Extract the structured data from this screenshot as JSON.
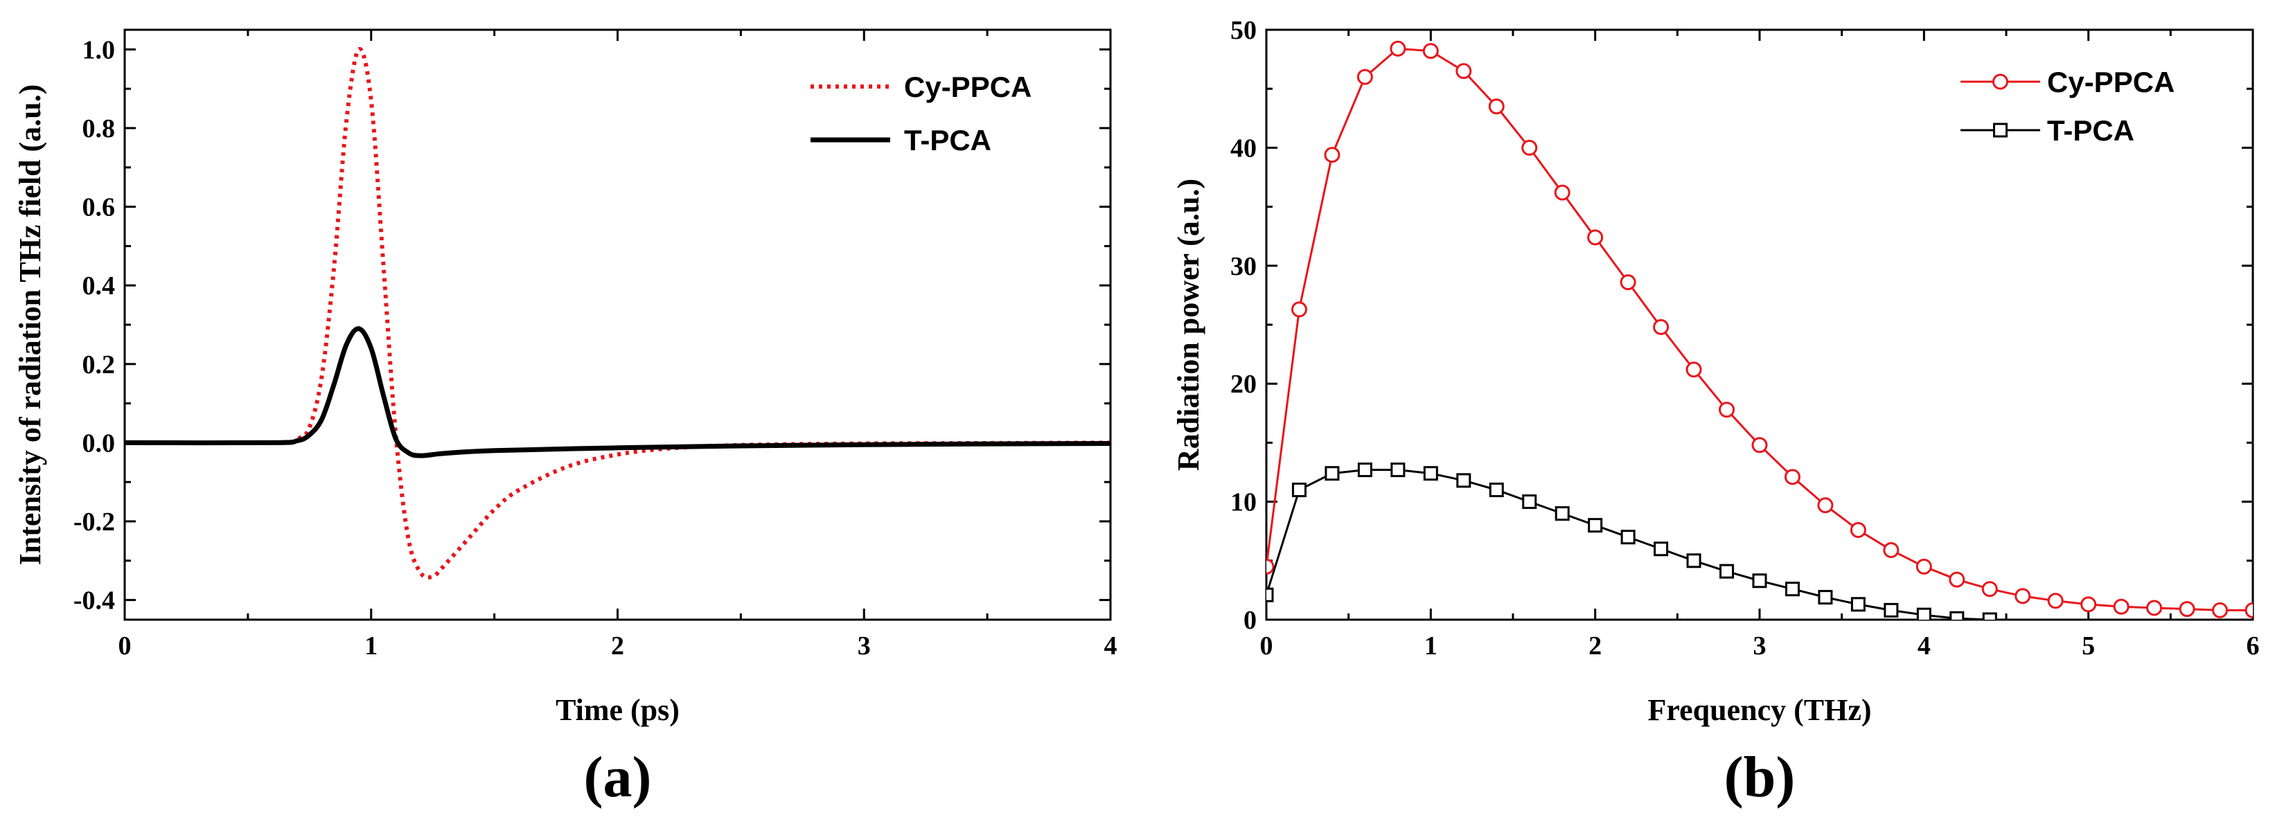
{
  "chart_data": [
    {
      "id": "a",
      "type": "line",
      "panel_label": "(a)",
      "title": "",
      "xlabel": "Time (ps)",
      "ylabel": "Intensity of radiation THz field (a.u.)",
      "xlim": [
        0,
        4
      ],
      "ylim": [
        -0.45,
        1.05
      ],
      "xticks": [
        0,
        1,
        2,
        3,
        4
      ],
      "xtick_labels": [
        "0",
        "1",
        "2",
        "3",
        "4"
      ],
      "yticks": [
        -0.4,
        -0.2,
        0.0,
        0.2,
        0.4,
        0.6,
        0.8,
        1.0
      ],
      "ytick_labels": [
        "-0.4",
        "-0.2",
        "0.0",
        "0.2",
        "0.4",
        "0.6",
        "0.8",
        "1.0"
      ],
      "legend_position": "top-right",
      "series": [
        {
          "name": "Cy-PPCA",
          "style": "dotted",
          "color": "#e8161b",
          "x": [
            0,
            0.6,
            0.7,
            0.75,
            0.8,
            0.85,
            0.9,
            0.95,
            1.0,
            1.05,
            1.1,
            1.15,
            1.2,
            1.25,
            1.3,
            1.4,
            1.5,
            1.6,
            1.8,
            2.0,
            2.2,
            2.5,
            3.0,
            3.5,
            4.0
          ],
          "y": [
            0,
            0.0,
            0.01,
            0.04,
            0.17,
            0.45,
            0.82,
            1.0,
            0.87,
            0.45,
            0.02,
            -0.24,
            -0.33,
            -0.34,
            -0.31,
            -0.24,
            -0.17,
            -0.12,
            -0.06,
            -0.03,
            -0.015,
            -0.006,
            -0.002,
            -0.001,
            0.0
          ]
        },
        {
          "name": "T-PCA",
          "style": "solid",
          "color": "#000000",
          "x": [
            0,
            0.6,
            0.7,
            0.75,
            0.8,
            0.85,
            0.9,
            0.95,
            1.0,
            1.05,
            1.1,
            1.15,
            1.2,
            1.3,
            1.5,
            2.0,
            2.5,
            3.0,
            3.5,
            4.0
          ],
          "y": [
            0,
            0.0,
            0.005,
            0.02,
            0.06,
            0.15,
            0.25,
            0.29,
            0.24,
            0.12,
            0.01,
            -0.025,
            -0.033,
            -0.027,
            -0.02,
            -0.013,
            -0.008,
            -0.005,
            -0.003,
            -0.002
          ]
        }
      ]
    },
    {
      "id": "b",
      "type": "line",
      "panel_label": "(b)",
      "title": "",
      "xlabel": "Frequency (THz)",
      "ylabel": "Radiation power (a.u.)",
      "xlim": [
        0,
        6
      ],
      "ylim": [
        0,
        50
      ],
      "xticks": [
        0,
        1,
        2,
        3,
        4,
        5,
        6
      ],
      "xtick_labels": [
        "0",
        "1",
        "2",
        "3",
        "4",
        "5",
        "6"
      ],
      "yticks": [
        0,
        10,
        20,
        30,
        40,
        50
      ],
      "ytick_labels": [
        "0",
        "10",
        "20",
        "30",
        "40",
        "50"
      ],
      "legend_position": "top-right",
      "series": [
        {
          "name": "Cy-PPCA",
          "marker": "circle",
          "color": "#e8161b",
          "x": [
            0,
            0.2,
            0.4,
            0.6,
            0.8,
            1.0,
            1.2,
            1.4,
            1.6,
            1.8,
            2.0,
            2.2,
            2.4,
            2.6,
            2.8,
            3.0,
            3.2,
            3.4,
            3.6,
            3.8,
            4.0,
            4.2,
            4.4,
            4.6,
            4.8,
            5.0,
            5.2,
            5.4,
            5.6,
            5.8,
            6.0
          ],
          "y": [
            4.5,
            26.3,
            39.4,
            46.0,
            48.4,
            48.2,
            46.5,
            43.5,
            40.0,
            36.2,
            32.4,
            28.6,
            24.8,
            21.2,
            17.8,
            14.8,
            12.1,
            9.7,
            7.6,
            5.9,
            4.5,
            3.4,
            2.6,
            2.0,
            1.6,
            1.3,
            1.1,
            1.0,
            0.9,
            0.8,
            0.8
          ]
        },
        {
          "name": "T-PCA",
          "marker": "square",
          "color": "#000000",
          "x": [
            0,
            0.2,
            0.4,
            0.6,
            0.8,
            1.0,
            1.2,
            1.4,
            1.6,
            1.8,
            2.0,
            2.2,
            2.4,
            2.6,
            2.8,
            3.0,
            3.2,
            3.4,
            3.6,
            3.8,
            4.0,
            4.2,
            4.4
          ],
          "y": [
            2.1,
            11.0,
            12.4,
            12.7,
            12.7,
            12.4,
            11.8,
            11.0,
            10.0,
            9.0,
            8.0,
            7.0,
            6.0,
            5.0,
            4.1,
            3.3,
            2.6,
            1.9,
            1.3,
            0.8,
            0.4,
            0.1,
            0.0
          ]
        }
      ]
    }
  ]
}
